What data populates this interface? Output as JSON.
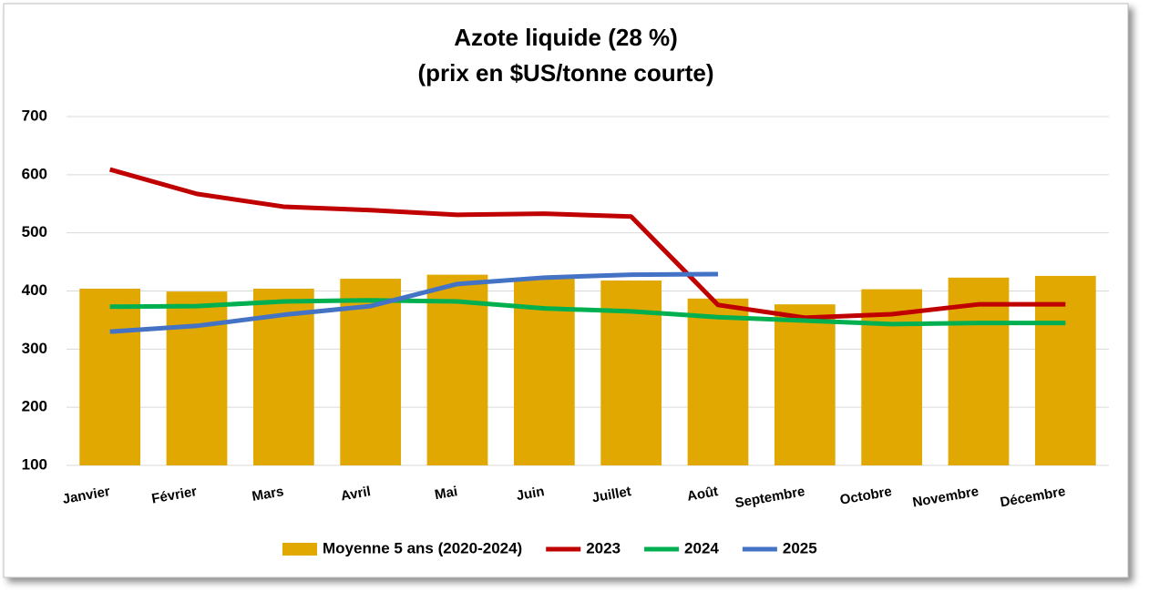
{
  "chart_data": {
    "type": "bar",
    "title": "Azote liquide (28 %)",
    "subtitle": "(prix en $US/tonne courte)",
    "categories": [
      "Janvier",
      "Février",
      "Mars",
      "Avril",
      "Mai",
      "Juin",
      "Juillet",
      "Août",
      "Septembre",
      "Octobre",
      "Novembre",
      "Décembre"
    ],
    "series": [
      {
        "name": "Moyenne 5 ans (2020-2024)",
        "type": "bar",
        "color": "#e0a800",
        "values": [
          404,
          399,
          404,
          421,
          428,
          421,
          418,
          387,
          377,
          403,
          423,
          426
        ]
      },
      {
        "name": "2023",
        "type": "line",
        "color": "#c00000",
        "values": [
          609,
          567,
          545,
          539,
          531,
          533,
          528,
          376,
          354,
          360,
          377,
          377
        ]
      },
      {
        "name": "2024",
        "type": "line",
        "color": "#00b050",
        "values": [
          373,
          374,
          382,
          384,
          382,
          370,
          365,
          355,
          349,
          343,
          345,
          345
        ]
      },
      {
        "name": "2025",
        "type": "line",
        "color": "#4472c4",
        "values": [
          330,
          340,
          359,
          374,
          412,
          423,
          428,
          429,
          null,
          null,
          null,
          null
        ]
      }
    ],
    "ylim": [
      100,
      700
    ],
    "yticks": [
      100,
      200,
      300,
      400,
      500,
      600,
      700
    ],
    "grid": true,
    "legend": "bottom"
  }
}
